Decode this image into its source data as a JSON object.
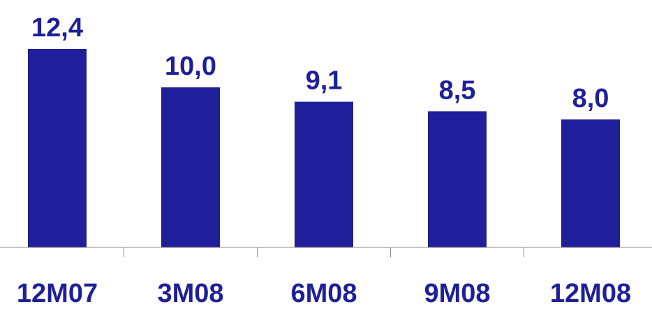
{
  "chart_data": {
    "type": "bar",
    "categories": [
      "12M07",
      "3M08",
      "6M08",
      "9M08",
      "12M08"
    ],
    "values": [
      12.4,
      10.0,
      9.1,
      8.5,
      8.0
    ],
    "value_labels": [
      "12,4",
      "10,0",
      "9,1",
      "8,5",
      "8,0"
    ],
    "title": "",
    "xlabel": "",
    "ylabel": "",
    "ylim": [
      0,
      12.4
    ],
    "grid": false,
    "bar_color": "#1f1f99",
    "text_color": "#1f1f99",
    "axis_color": "#8c8c8c"
  }
}
